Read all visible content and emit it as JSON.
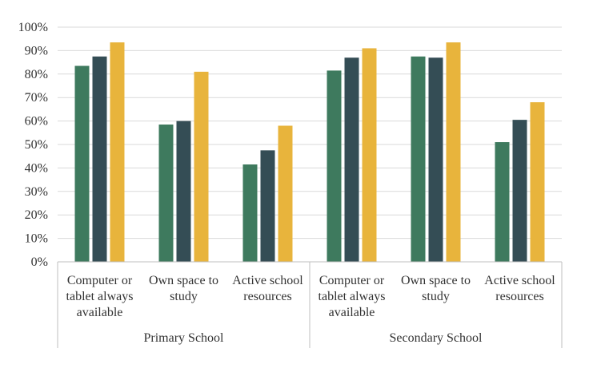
{
  "chart_data": {
    "type": "bar",
    "groups": [
      {
        "label": "Primary School",
        "categories": [
          {
            "label_lines": [
              "Computer or",
              "tablet always",
              "available"
            ],
            "values": [
              0.835,
              0.875,
              0.935
            ]
          },
          {
            "label_lines": [
              "Own space to",
              "study"
            ],
            "values": [
              0.585,
              0.6,
              0.81
            ]
          },
          {
            "label_lines": [
              "Active school",
              "resources"
            ],
            "values": [
              0.415,
              0.475,
              0.58
            ]
          }
        ]
      },
      {
        "label": "Secondary School",
        "categories": [
          {
            "label_lines": [
              "Computer or",
              "tablet always",
              "available"
            ],
            "values": [
              0.815,
              0.87,
              0.91
            ]
          },
          {
            "label_lines": [
              "Own space to",
              "study"
            ],
            "values": [
              0.875,
              0.87,
              0.935
            ]
          },
          {
            "label_lines": [
              "Active school",
              "resources"
            ],
            "values": [
              0.51,
              0.605,
              0.68
            ]
          }
        ]
      }
    ],
    "series_colors": [
      "#3e7a5e",
      "#344d55",
      "#e8b43c"
    ],
    "y_ticks": [
      "0%",
      "10%",
      "20%",
      "30%",
      "40%",
      "50%",
      "60%",
      "70%",
      "80%",
      "90%",
      "100%"
    ],
    "ylim": [
      0,
      1
    ],
    "grid": true,
    "legend": "none"
  }
}
